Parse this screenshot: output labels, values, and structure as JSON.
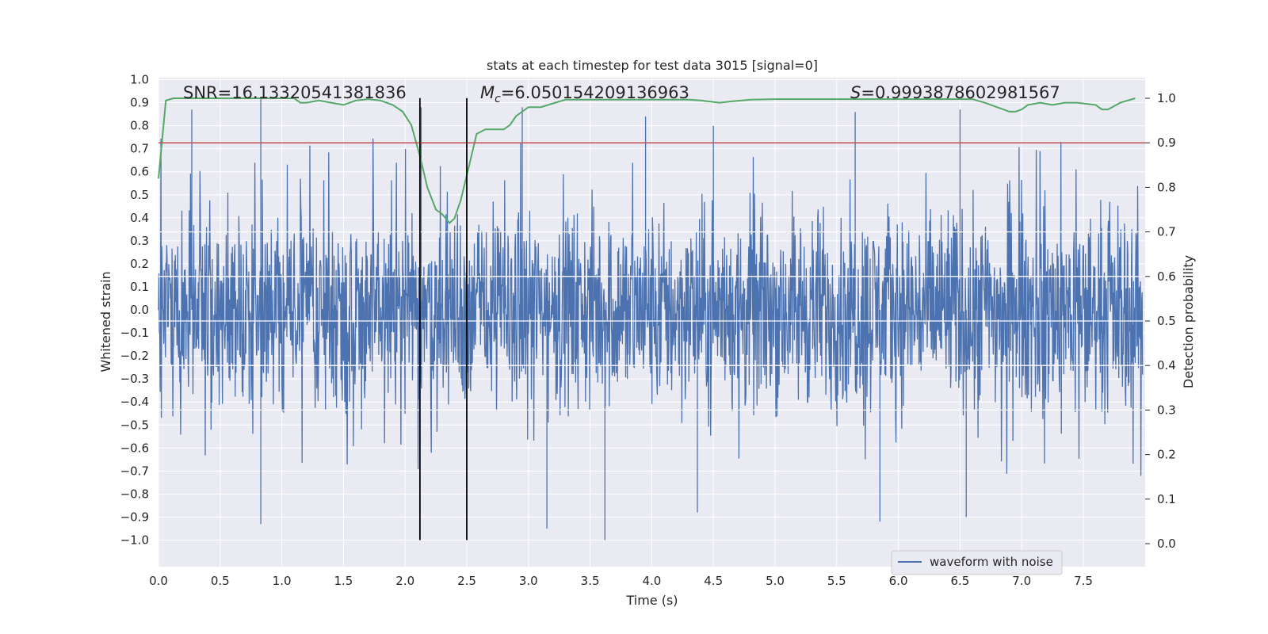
{
  "chart_data": {
    "type": "line",
    "title": "stats at each timestep for test data 3015 [signal=0]",
    "xlabel": "Time (s)",
    "ylabel": "Whitened strain",
    "y2label": "Detection probability",
    "xlim": [
      0.0,
      8.0
    ],
    "ylim": [
      -1.1,
      1.05
    ],
    "y2lim": [
      -0.05,
      1.05
    ],
    "x_ticks": [
      "0.0",
      "0.5",
      "1.0",
      "1.5",
      "2.0",
      "2.5",
      "3.0",
      "3.5",
      "4.0",
      "4.5",
      "5.0",
      "5.5",
      "6.0",
      "6.5",
      "7.0",
      "7.5"
    ],
    "y_ticks": [
      "1.0",
      "0.9",
      "0.8",
      "0.7",
      "0.6",
      "0.5",
      "0.4",
      "0.3",
      "0.2",
      "0.1",
      "0.0",
      "−0.1",
      "−0.2",
      "−0.3",
      "−0.4",
      "−0.5",
      "−0.6",
      "−0.7",
      "−0.8",
      "−0.9",
      "−1.0"
    ],
    "y2_ticks": [
      "1.0",
      "0.9",
      "0.8",
      "0.7",
      "0.6",
      "0.5",
      "0.4",
      "0.3",
      "0.2",
      "0.1",
      "0.0"
    ],
    "annotations": {
      "snr": "SNR=16.13320541381836",
      "mc_symbol": "M",
      "mc_sub": "c",
      "mc_value": "=6.050154209136963",
      "s_symbol": "S",
      "s_value": "=0.9993878602981567"
    },
    "legend": {
      "label": "waveform with noise",
      "location": "lower-right"
    },
    "vlines": [
      2.12,
      2.5
    ],
    "threshold": 0.9,
    "series": [
      {
        "name": "waveform with noise",
        "axis": "left",
        "color": "#4c72b0",
        "style": "noise",
        "n_points": 2400,
        "spikes": [
          [
            0.27,
            0.87
          ],
          [
            0.83,
            0.92
          ],
          [
            2.13,
            0.88
          ],
          [
            2.95,
            0.88
          ],
          [
            3.95,
            0.84
          ],
          [
            4.5,
            0.8
          ],
          [
            5.65,
            0.86
          ],
          [
            6.5,
            0.87
          ],
          [
            0.83,
            -0.93
          ],
          [
            3.15,
            -0.95
          ],
          [
            3.62,
            -1.0
          ],
          [
            4.37,
            -0.88
          ],
          [
            6.55,
            -0.9
          ],
          [
            5.85,
            -0.92
          ]
        ]
      },
      {
        "name": "detection probability",
        "axis": "right",
        "color": "#55a868",
        "x": [
          0.0,
          0.06,
          0.12,
          0.3,
          0.6,
          0.9,
          1.1,
          1.15,
          1.2,
          1.3,
          1.4,
          1.5,
          1.6,
          1.7,
          1.8,
          1.9,
          1.98,
          2.05,
          2.12,
          2.18,
          2.25,
          2.3,
          2.36,
          2.4,
          2.45,
          2.52,
          2.58,
          2.65,
          2.8,
          2.85,
          2.9,
          3.0,
          3.1,
          3.3,
          3.6,
          4.0,
          4.3,
          4.4,
          4.55,
          4.65,
          4.8,
          5.0,
          5.3,
          5.5,
          5.8,
          6.2,
          6.6,
          6.7,
          6.8,
          6.9,
          6.95,
          7.0,
          7.05,
          7.15,
          7.25,
          7.35,
          7.45,
          7.6,
          7.65,
          7.7,
          7.8,
          7.92
        ],
        "y": [
          0.82,
          0.995,
          1.0,
          1.0,
          1.0,
          1.0,
          1.0,
          0.99,
          0.99,
          0.995,
          0.99,
          0.985,
          0.995,
          0.998,
          0.995,
          0.985,
          0.97,
          0.94,
          0.87,
          0.8,
          0.75,
          0.74,
          0.72,
          0.73,
          0.77,
          0.85,
          0.92,
          0.93,
          0.93,
          0.94,
          0.96,
          0.98,
          0.98,
          0.997,
          0.997,
          0.997,
          0.997,
          0.995,
          0.99,
          0.993,
          0.997,
          0.998,
          0.998,
          0.998,
          0.998,
          0.998,
          0.998,
          0.99,
          0.98,
          0.97,
          0.97,
          0.975,
          0.985,
          0.99,
          0.985,
          0.99,
          0.99,
          0.985,
          0.975,
          0.975,
          0.99,
          1.0
        ]
      }
    ]
  }
}
